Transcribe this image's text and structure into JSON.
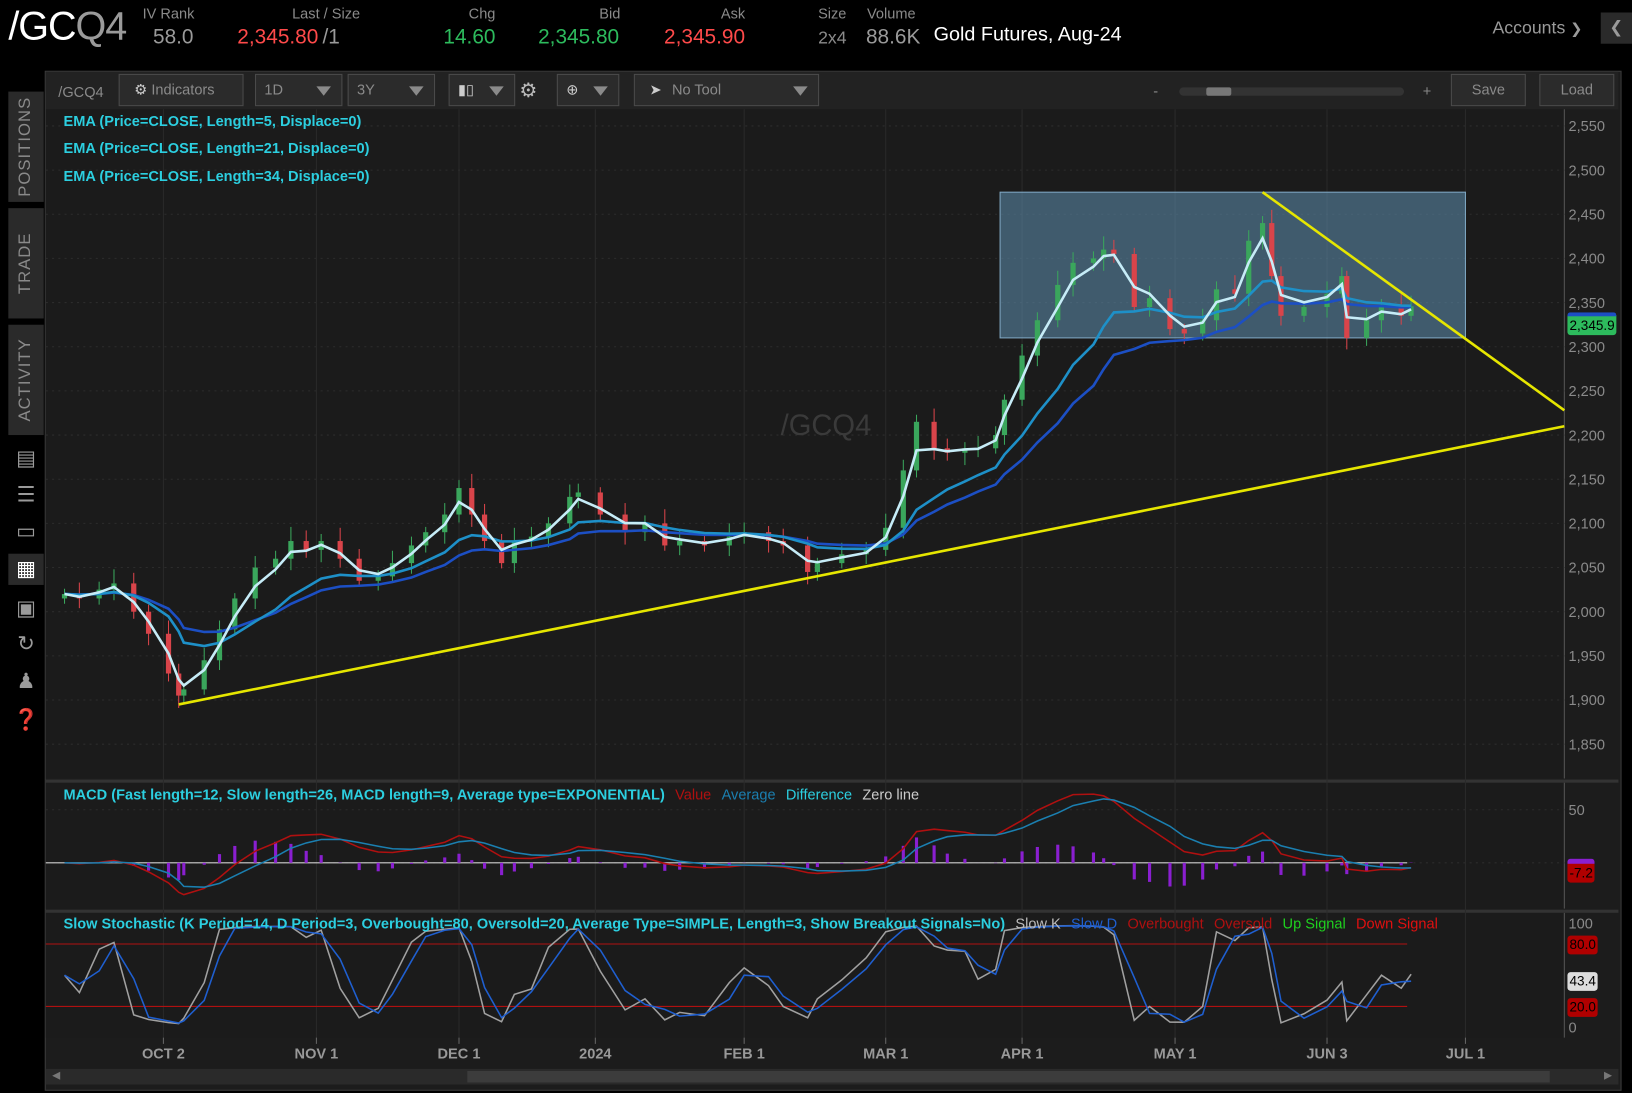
{
  "header": {
    "symbol_main": "/GC",
    "symbol_suffix": "Q4",
    "iv_rank_label": "IV Rank",
    "iv_rank": "58.0",
    "last_size_label": "Last / Size",
    "last": "2,345.80",
    "last_size": "/1",
    "chg_label": "Chg",
    "chg": "14.60",
    "bid_label": "Bid",
    "bid": "2,345.80",
    "ask_label": "Ask",
    "ask": "2,345.90",
    "size_label": "Size",
    "size": "2x4",
    "volume_label": "Volume",
    "volume": "88.6K",
    "description": "Gold Futures, Aug-24",
    "accounts_label": "Accounts"
  },
  "sidebar": {
    "tabs": [
      "POSITIONS",
      "TRADE",
      "ACTIVITY"
    ],
    "icons": [
      "news-icon",
      "watchlist-icon",
      "tv-icon",
      "charts-icon",
      "grid-icon",
      "history-icon",
      "community-icon",
      "help-icon"
    ]
  },
  "toolbar": {
    "symbol": "/GCQ4",
    "indicators": "Indicators",
    "aggregation": "1D",
    "timeframe": "3Y",
    "drawing_tool": "No Tool",
    "zoom_minus": "-",
    "zoom_plus": "+",
    "zoom_level": 0.12,
    "save": "Save",
    "load": "Load"
  },
  "colors": {
    "up": "#3aa65c",
    "down": "#d9444a",
    "ema5": "#c6ecf7",
    "ema21": "#1e90c8",
    "ema34": "#1c4fc4",
    "trendline": "#e6e600",
    "legend": "#2ccfe0",
    "value": "#b01010",
    "average": "#1b7fb0",
    "difference": "#8a1fd0",
    "zero": "#d0d0d0",
    "slow_k": "#a0a0a0",
    "slow_d": "#1f5fd0",
    "overbought": "#b01010",
    "oversold": "#b01010",
    "up_signal": "#1fd01f",
    "down_signal": "#e01010",
    "range_box": "#5e8fb0"
  },
  "price_pane": {
    "watermark": "/GCQ4",
    "studies": [
      "EMA (Price=CLOSE, Length=5, Displace=0)",
      "EMA (Price=CLOSE, Length=21, Displace=0)",
      "EMA (Price=CLOSE, Length=34, Displace=0)"
    ],
    "last_badge": "2,345.9"
  },
  "macd_pane": {
    "title": "MACD (Fast length=12, Slow length=26, MACD length=9, Average type=EXPONENTIAL)",
    "legend": [
      "Value",
      "Average",
      "Difference",
      "Zero line"
    ],
    "axis": [
      "50"
    ],
    "badge": "-7.2"
  },
  "stoch_pane": {
    "title": "Slow Stochastic (K Period=14, D Period=3, Overbought=80, Oversold=20, Average Type=SIMPLE, Length=3, Show Breakout Signals=No)",
    "legend": [
      "Slow K",
      "Slow D",
      "Overbought",
      "Oversold",
      "Up Signal",
      "Down Signal"
    ],
    "axis": [
      "100",
      "0"
    ],
    "badges": [
      "80.0",
      "43.4",
      "20.0"
    ]
  },
  "chart_data": {
    "type": "candlestick",
    "title": "/GCQ4",
    "ylim": [
      1820,
      2570
    ],
    "y_ticks": [
      "2,550",
      "2,500",
      "2,450",
      "2,400",
      "2,350",
      "2,300",
      "2,250",
      "2,200",
      "2,150",
      "2,100",
      "2,050",
      "2,000",
      "1,950",
      "1,900",
      "1,850"
    ],
    "x_ticks": [
      {
        "label": "OCT 2",
        "date": "2023-10-02"
      },
      {
        "label": "NOV 1",
        "date": "2023-11-01"
      },
      {
        "label": "DEC 1",
        "date": "2023-12-01"
      },
      {
        "label": "2024",
        "date": "2024-01-02"
      },
      {
        "label": "FEB 1",
        "date": "2024-02-01"
      },
      {
        "label": "MAR 1",
        "date": "2024-03-01"
      },
      {
        "label": "APR 1",
        "date": "2024-04-01"
      },
      {
        "label": "MAY 1",
        "date": "2024-05-01"
      },
      {
        "label": "JUN 3",
        "date": "2024-06-03"
      },
      {
        "label": "JUL 1",
        "date": "2024-07-01"
      }
    ],
    "grid": true,
    "closes": [
      [
        "2023-09-12",
        2020
      ],
      [
        "2023-09-15",
        2015
      ],
      [
        "2023-09-19",
        2025
      ],
      [
        "2023-09-22",
        2032
      ],
      [
        "2023-09-26",
        2000
      ],
      [
        "2023-09-29",
        1975
      ],
      [
        "2023-10-03",
        1930
      ],
      [
        "2023-10-05",
        1905
      ],
      [
        "2023-10-06",
        1912
      ],
      [
        "2023-10-10",
        1945
      ],
      [
        "2023-10-13",
        1980
      ],
      [
        "2023-10-16",
        2015
      ],
      [
        "2023-10-20",
        2050
      ],
      [
        "2023-10-24",
        2060
      ],
      [
        "2023-10-27",
        2080
      ],
      [
        "2023-10-30",
        2070
      ],
      [
        "2023-11-02",
        2080
      ],
      [
        "2023-11-06",
        2060
      ],
      [
        "2023-11-10",
        2035
      ],
      [
        "2023-11-14",
        2040
      ],
      [
        "2023-11-17",
        2055
      ],
      [
        "2023-11-21",
        2075
      ],
      [
        "2023-11-24",
        2090
      ],
      [
        "2023-11-28",
        2110
      ],
      [
        "2023-12-01",
        2140
      ],
      [
        "2023-12-04",
        2110
      ],
      [
        "2023-12-07",
        2080
      ],
      [
        "2023-12-11",
        2055
      ],
      [
        "2023-12-14",
        2080
      ],
      [
        "2023-12-18",
        2085
      ],
      [
        "2023-12-22",
        2100
      ],
      [
        "2023-12-27",
        2130
      ],
      [
        "2023-12-29",
        2135
      ],
      [
        "2024-01-03",
        2110
      ],
      [
        "2024-01-08",
        2090
      ],
      [
        "2024-01-12",
        2100
      ],
      [
        "2024-01-16",
        2075
      ],
      [
        "2024-01-19",
        2080
      ],
      [
        "2024-01-24",
        2075
      ],
      [
        "2024-01-29",
        2085
      ],
      [
        "2024-02-01",
        2090
      ],
      [
        "2024-02-06",
        2080
      ],
      [
        "2024-02-09",
        2075
      ],
      [
        "2024-02-14",
        2045
      ],
      [
        "2024-02-16",
        2055
      ],
      [
        "2024-02-21",
        2065
      ],
      [
        "2024-02-26",
        2070
      ],
      [
        "2024-03-01",
        2095
      ],
      [
        "2024-03-05",
        2160
      ],
      [
        "2024-03-08",
        2215
      ],
      [
        "2024-03-12",
        2185
      ],
      [
        "2024-03-15",
        2180
      ],
      [
        "2024-03-19",
        2185
      ],
      [
        "2024-03-22",
        2185
      ],
      [
        "2024-03-26",
        2200
      ],
      [
        "2024-03-28",
        2240
      ],
      [
        "2024-04-01",
        2290
      ],
      [
        "2024-04-04",
        2330
      ],
      [
        "2024-04-08",
        2370
      ],
      [
        "2024-04-11",
        2395
      ],
      [
        "2024-04-15",
        2400
      ],
      [
        "2024-04-17",
        2410
      ],
      [
        "2024-04-19",
        2405
      ],
      [
        "2024-04-23",
        2345
      ],
      [
        "2024-04-26",
        2355
      ],
      [
        "2024-04-30",
        2320
      ],
      [
        "2024-05-03",
        2315
      ],
      [
        "2024-05-07",
        2330
      ],
      [
        "2024-05-10",
        2365
      ],
      [
        "2024-05-14",
        2360
      ],
      [
        "2024-05-17",
        2420
      ],
      [
        "2024-05-20",
        2440
      ],
      [
        "2024-05-22",
        2380
      ],
      [
        "2024-05-24",
        2335
      ],
      [
        "2024-05-29",
        2345
      ],
      [
        "2024-06-03",
        2360
      ],
      [
        "2024-06-06",
        2380
      ],
      [
        "2024-06-07",
        2310
      ],
      [
        "2024-06-11",
        2330
      ],
      [
        "2024-06-14",
        2345
      ],
      [
        "2024-06-18",
        2335
      ],
      [
        "2024-06-20",
        2345.8
      ]
    ],
    "trendlines": [
      {
        "from": [
          "2023-10-05",
          1895
        ],
        "to": [
          "2024-07-29",
          2210
        ]
      },
      {
        "from": [
          "2024-05-20",
          2475
        ],
        "to": [
          "2024-07-29",
          2228
        ]
      }
    ],
    "range_box": {
      "from": [
        "2024-03-27",
        2475
      ],
      "to": [
        "2024-07-01",
        2310
      ]
    }
  }
}
